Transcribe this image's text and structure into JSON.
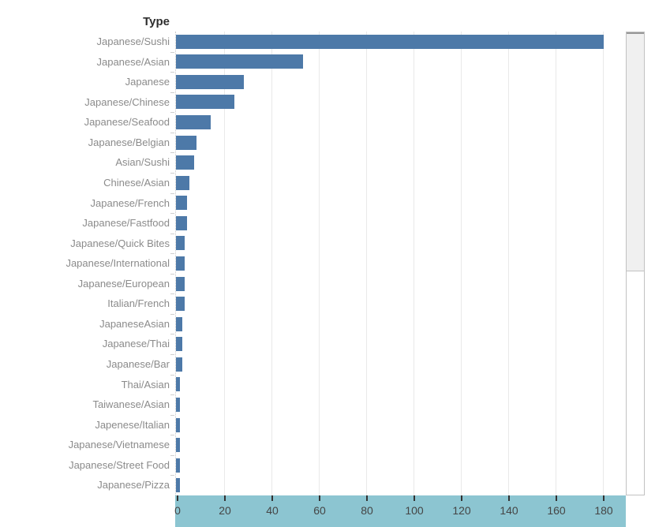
{
  "header": {
    "field_label": "Type"
  },
  "chart_data": {
    "type": "bar",
    "orientation": "horizontal",
    "title": "",
    "xlabel": "",
    "ylabel": "Type",
    "categories": [
      "Japanese/Sushi",
      "Japanese/Asian",
      "Japanese",
      "Japanese/Chinese",
      "Japanese/Seafood",
      "Japanese/Belgian",
      "Asian/Sushi",
      "Chinese/Asian",
      "Japanese/French",
      "Japanese/Fastfood",
      "Japanese/Quick Bites",
      "Japanese/International",
      "Japanese/European",
      "Italian/French",
      "JapaneseAsian",
      "Japanese/Thai",
      "Japanese/Bar",
      "Thai/Asian",
      "Taiwanese/Asian",
      "Japenese/Italian",
      "Japanese/Vietnamese",
      "Japanese/Street Food",
      "Japanese/Pizza"
    ],
    "values": [
      180,
      53,
      28,
      24,
      14,
      8,
      7,
      5,
      4,
      4,
      3,
      3,
      3,
      3,
      2,
      2,
      2,
      1,
      1,
      1,
      1,
      1,
      1
    ],
    "x_ticks": [
      0,
      20,
      40,
      60,
      80,
      100,
      120,
      140,
      160,
      180
    ],
    "xlim": [
      0,
      190
    ],
    "grid": "vertical-light",
    "legend": "none",
    "colors": {
      "bar": "#4d79a8",
      "axis_band_background": "#8cc5d1",
      "axis_tick": "#333333",
      "axis_tick_label": "#454545",
      "category_label": "#8b8b8b",
      "header_label": "#2e2e2e",
      "gridline": "#e9e9e9",
      "scrollbar_thumb": "#f0f0f0",
      "scrollbar_border": "#c2c2c2"
    }
  },
  "scrollbar": {
    "visible": true,
    "thumb_position": "top"
  }
}
